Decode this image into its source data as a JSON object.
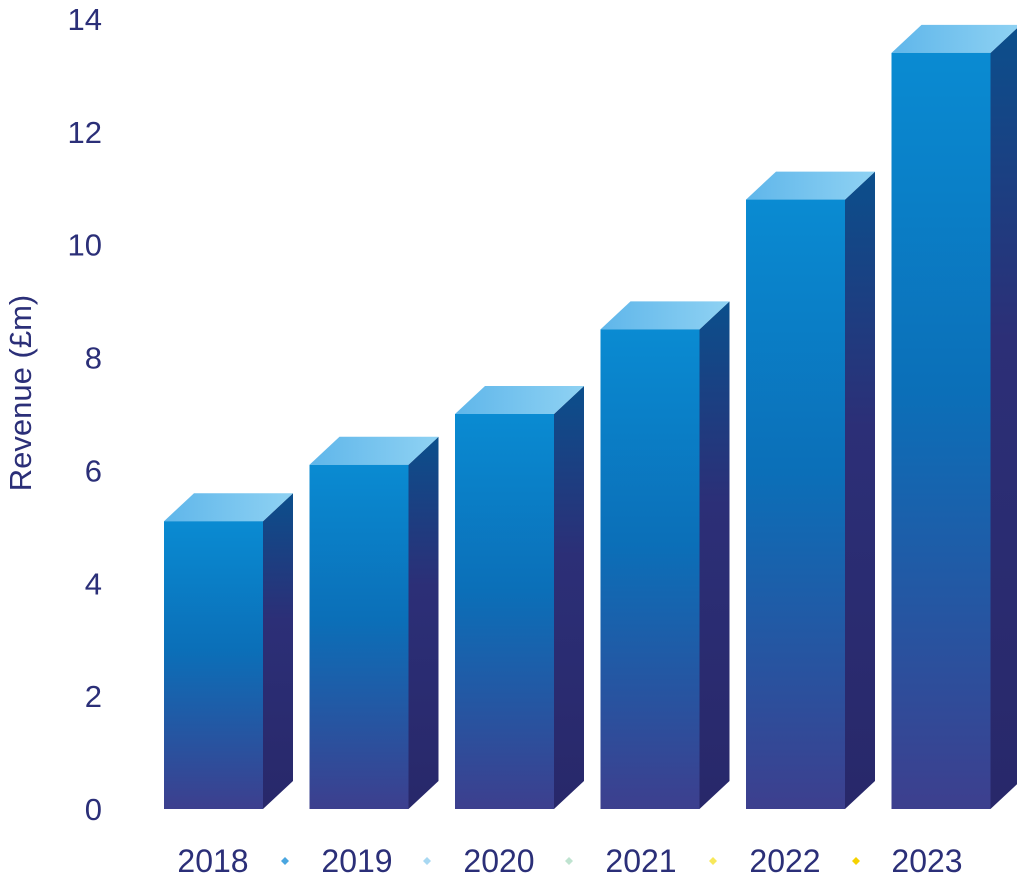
{
  "chart_data": {
    "type": "bar",
    "ylabel": "Revenue (£m)",
    "xlabel": "",
    "ylim": [
      0,
      14
    ],
    "yticks": [
      "0",
      "2",
      "4",
      "6",
      "8",
      "10",
      "12",
      "14"
    ],
    "categories": [
      "2018",
      "2019",
      "2020",
      "2021",
      "2022",
      "2023"
    ],
    "values": [
      5.1,
      6.1,
      7.0,
      8.5,
      10.8,
      13.4
    ],
    "grid": false,
    "style": "3d-gradient-bars",
    "colors": {
      "axis_text": "#2b2f78",
      "bar_top": "#0a8bd2",
      "bar_bottom": "#3b3f8f",
      "bar_side_top": "#0a4e8a",
      "bar_side_bottom": "#2a2a6e",
      "bar_cap": "#7cc8ef",
      "separator_diamonds": [
        "#4aa6e0",
        "#a8d8f2",
        "#bfe3d0",
        "#f7e85a",
        "#f5d200"
      ]
    }
  }
}
